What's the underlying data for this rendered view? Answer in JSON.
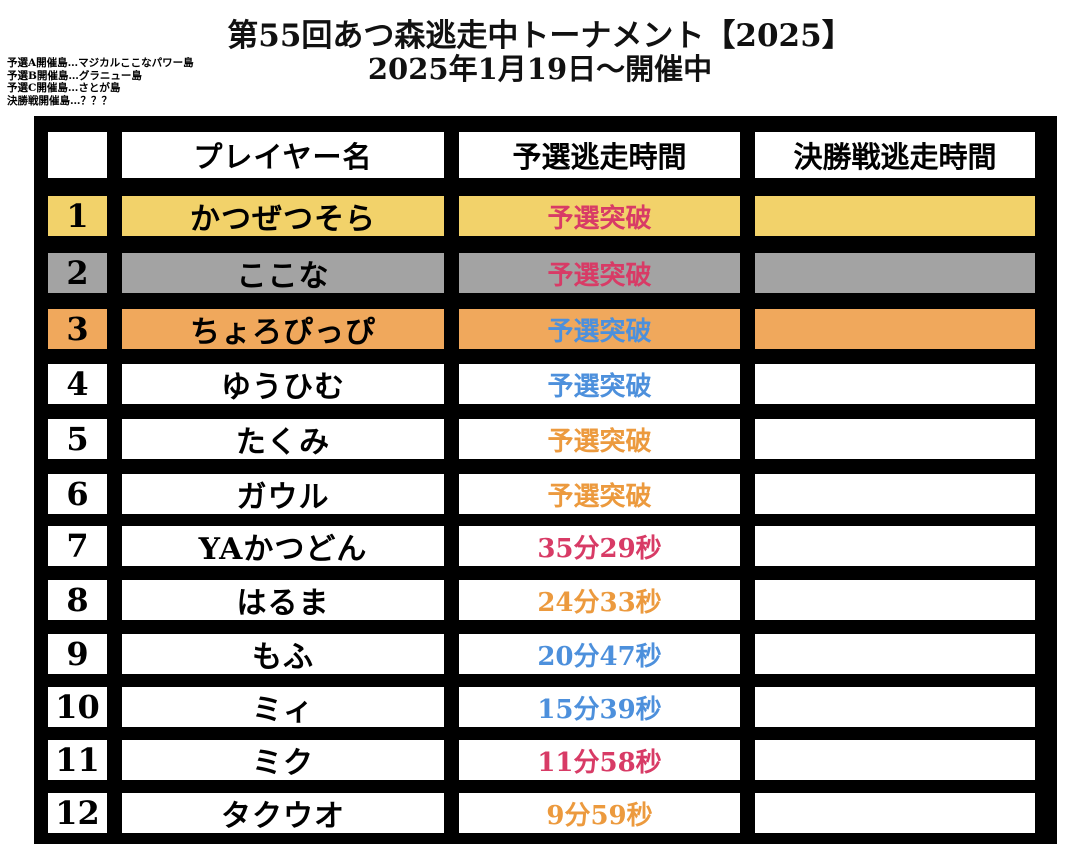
{
  "title": {
    "line1": "第55回あつ森逃走中トーナメント【2025】",
    "line2": "2025年1月19日〜開催中"
  },
  "notes": [
    "予選A開催島…マジカルここなパワー島",
    "予選B開催島…グラニュー島",
    "予選C開催島…さとが島",
    "決勝戦開催島…？？？"
  ],
  "table": {
    "headers": [
      "",
      "プレイヤー名",
      "予選逃走時間",
      "決勝戦逃走時間"
    ],
    "rows": [
      {
        "rank": "1",
        "name": "かつぜつそら",
        "prelim": "予選突破",
        "final": "",
        "bg": "#f2d26a",
        "time_color": "#d83b66"
      },
      {
        "rank": "2",
        "name": "ここな",
        "prelim": "予選突破",
        "final": "",
        "bg": "#a3a3a3",
        "time_color": "#d83b66"
      },
      {
        "rank": "3",
        "name": "ちょろぴっぴ",
        "prelim": "予選突破",
        "final": "",
        "bg": "#f0a85c",
        "time_color": "#4d90dc"
      },
      {
        "rank": "4",
        "name": "ゆうひむ",
        "prelim": "予選突破",
        "final": "",
        "bg": "#ffffff",
        "time_color": "#4d90dc"
      },
      {
        "rank": "5",
        "name": "たくみ",
        "prelim": "予選突破",
        "final": "",
        "bg": "#ffffff",
        "time_color": "#ec9a3e"
      },
      {
        "rank": "6",
        "name": "ガウル",
        "prelim": "予選突破",
        "final": "",
        "bg": "#ffffff",
        "time_color": "#ec9a3e"
      },
      {
        "rank": "7",
        "name": "YAかつどん",
        "prelim": "35分29秒",
        "final": "",
        "bg": "#ffffff",
        "time_color": "#d83b66"
      },
      {
        "rank": "8",
        "name": "はるま",
        "prelim": "24分33秒",
        "final": "",
        "bg": "#ffffff",
        "time_color": "#ec9a3e"
      },
      {
        "rank": "9",
        "name": "もふ",
        "prelim": "20分47秒",
        "final": "",
        "bg": "#ffffff",
        "time_color": "#4d90dc"
      },
      {
        "rank": "10",
        "name": "ミィ",
        "prelim": "15分39秒",
        "final": "",
        "bg": "#ffffff",
        "time_color": "#4d90dc"
      },
      {
        "rank": "11",
        "name": "ミク",
        "prelim": "11分58秒",
        "final": "",
        "bg": "#ffffff",
        "time_color": "#d83b66"
      },
      {
        "rank": "12",
        "name": "タクウオ",
        "prelim": "9分59秒",
        "final": "",
        "bg": "#ffffff",
        "time_color": "#ec9a3e"
      }
    ]
  }
}
